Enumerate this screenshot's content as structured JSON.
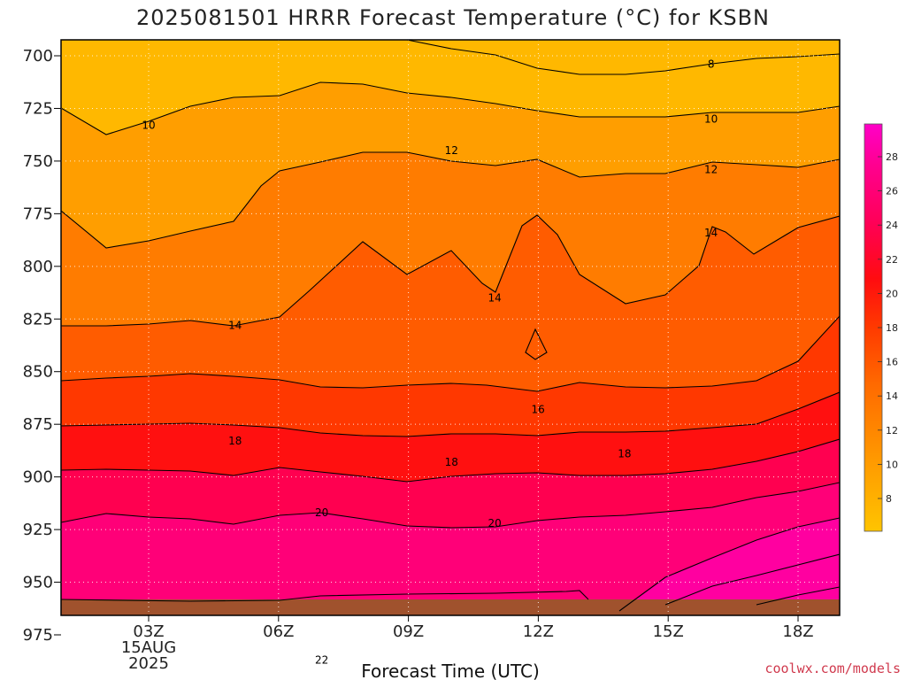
{
  "chart_data": {
    "type": "contour",
    "title": "2025081501 HRRR Forecast Temperature (°C) for KSBN",
    "xlabel": "Forecast Time (UTC)",
    "ylabel": "",
    "credit": "coolwx.com/models",
    "x_ticks": [
      {
        "label": "03Z",
        "sub": [
          "15AUG",
          "2025"
        ]
      },
      {
        "label": "06Z",
        "sub": []
      },
      {
        "label": "09Z",
        "sub": []
      },
      {
        "label": "12Z",
        "sub": []
      },
      {
        "label": "15Z",
        "sub": []
      },
      {
        "label": "18Z",
        "sub": []
      }
    ],
    "y_ticks": [
      "700",
      "725",
      "750",
      "775",
      "800",
      "825",
      "850",
      "875",
      "900",
      "925",
      "950",
      "975"
    ],
    "ylim": [
      990,
      692
    ],
    "y_reversed": true,
    "colorbar_ticks": [
      "8",
      "10",
      "12",
      "14",
      "16",
      "18",
      "20",
      "22",
      "24",
      "26",
      "28"
    ],
    "contour_labels": [
      {
        "value": "8",
        "hour": 16,
        "pressure": 704
      },
      {
        "value": "10",
        "hour": 3,
        "pressure": 733
      },
      {
        "value": "10",
        "hour": 16,
        "pressure": 730
      },
      {
        "value": "12",
        "hour": 10,
        "pressure": 745
      },
      {
        "value": "12",
        "hour": 16,
        "pressure": 754
      },
      {
        "value": "14",
        "hour": 5,
        "pressure": 828
      },
      {
        "value": "14",
        "hour": 11,
        "pressure": 815
      },
      {
        "value": "14",
        "hour": 16,
        "pressure": 784
      },
      {
        "value": "16",
        "hour": 12,
        "pressure": 868
      },
      {
        "value": "18",
        "hour": 5,
        "pressure": 883
      },
      {
        "value": "18",
        "hour": 10,
        "pressure": 893
      },
      {
        "value": "18",
        "hour": 14,
        "pressure": 889
      },
      {
        "value": "20",
        "hour": 7,
        "pressure": 917
      },
      {
        "value": "20",
        "hour": 11,
        "pressure": 922
      },
      {
        "value": "22",
        "hour": 7,
        "pressure": 987
      }
    ],
    "grid": true,
    "colors": {
      "t8": "#ffb800",
      "t10": "#ff9e00",
      "t12": "#ff7c00",
      "t14": "#ff5c00",
      "t16": "#ff3800",
      "t18": "#ff1010",
      "t20": "#ff0050",
      "t22": "#ff0078",
      "t24": "#ff00a0",
      "ground": "#a0522d"
    }
  }
}
